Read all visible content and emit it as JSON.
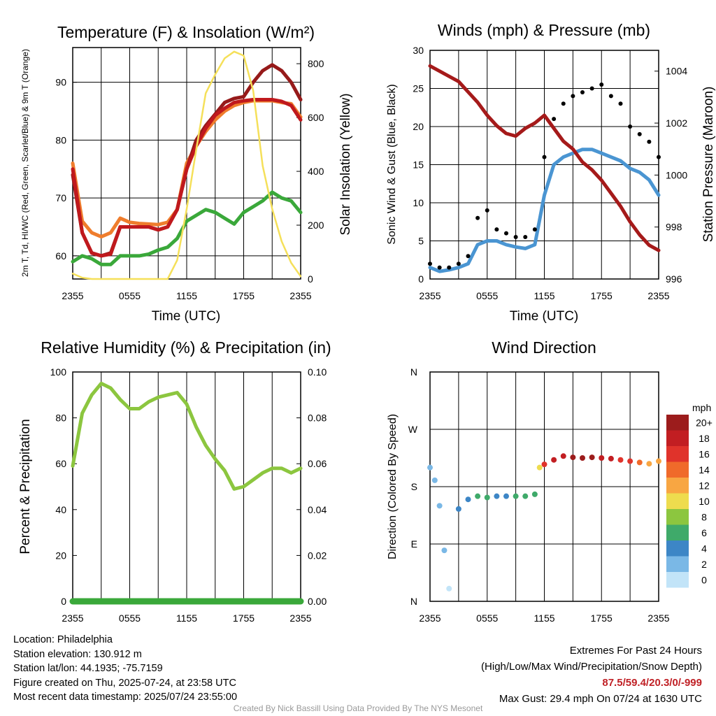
{
  "colors": {
    "red": "#c0191d",
    "green": "#3aa83a",
    "orange": "#ef7d2d",
    "darkred": "#961a1a",
    "yellow": "#f5e05a",
    "wind_blue": "#4a95d2",
    "gust_black": "#000000",
    "pressure": "#a51a1a",
    "rh": "#8cc63f",
    "precip": "#3aa83a"
  },
  "x_ticks": [
    "2355",
    "0555",
    "1155",
    "1755",
    "2355"
  ],
  "footer": {
    "location": "Location: Philadelphia",
    "elevation": "Station elevation: 130.912 m",
    "latlon": "Station lat/lon: 44.1935; -75.7159",
    "created": "Figure created on Thu, 2025-07-24, at 23:58 UTC",
    "recent": "Most recent data timestamp: 2025/07/24 23:55:00",
    "extremes_title": "Extremes For Past 24 Hours",
    "extremes_keys": "(High/Low/Max Wind/Precipitation/Snow Depth)",
    "extremes_values": "87.5/59.4/20.3/0/-999",
    "max_gust": "Max Gust: 29.4 mph On 07/24 at 1630 UTC",
    "credit": "Created By Nick Bassill Using Data Provided By The NYS Mesonet"
  },
  "chart_data": [
    {
      "type": "line",
      "title": "Temperature (F) & Insolation (W/m²)",
      "xlabel": "Time (UTC)",
      "ylabel": "2m T, Td, HI/WC (Red, Green, Scarlet/Blue) & 9m T (Orange)",
      "ylabel2": "Solar Insolation (Yellow)",
      "ylim": [
        56,
        96
      ],
      "y2lim": [
        0,
        860
      ],
      "yticks": [
        60,
        70,
        80,
        90
      ],
      "y2ticks": [
        0,
        200,
        400,
        600,
        800
      ],
      "x_hours": [
        0,
        1,
        2,
        3,
        4,
        5,
        6,
        7,
        8,
        9,
        10,
        11,
        12,
        13,
        14,
        15,
        16,
        17,
        18,
        19,
        20,
        21,
        22,
        23,
        24
      ],
      "series": [
        {
          "name": "9m T",
          "color": "orange",
          "axis": "left",
          "values": [
            76,
            66,
            64,
            63.3,
            64,
            66.5,
            65.8,
            65.6,
            65.5,
            65.4,
            65.8,
            68,
            76,
            79,
            81.5,
            83.5,
            85,
            86,
            86.5,
            86.8,
            86.8,
            86.8,
            86.5,
            86.3,
            84
          ]
        },
        {
          "name": "HI/WC",
          "color": "darkred",
          "axis": "left",
          "values": [
            74,
            64,
            60.5,
            60,
            60.5,
            65,
            65,
            65,
            65,
            64.5,
            65,
            68,
            75,
            80,
            82.5,
            84.5,
            86.5,
            87.2,
            87.5,
            90,
            92,
            93,
            92,
            90,
            87
          ]
        },
        {
          "name": "2m T",
          "color": "red",
          "axis": "left",
          "values": [
            75,
            64,
            60.5,
            60,
            60.3,
            65,
            65,
            65,
            65,
            64.5,
            65,
            68,
            75,
            79,
            82,
            84.3,
            85.5,
            86.5,
            86.8,
            87,
            87,
            87,
            86.7,
            86,
            83.5
          ]
        },
        {
          "name": "2m Td",
          "color": "green",
          "axis": "left",
          "values": [
            59,
            60,
            59.5,
            58.5,
            58.5,
            60,
            60,
            60,
            60.3,
            61,
            61.5,
            63,
            66,
            67,
            68,
            67.5,
            66.5,
            65.5,
            67.5,
            68.5,
            69.5,
            71,
            70,
            69.5,
            67.5
          ]
        },
        {
          "name": "Insolation",
          "color": "yellow",
          "axis": "right",
          "values": [
            20,
            5,
            0,
            0,
            0,
            0,
            0,
            0,
            0,
            0,
            0,
            70,
            260,
            480,
            690,
            760,
            820,
            845,
            830,
            700,
            420,
            260,
            140,
            60,
            10
          ]
        }
      ]
    },
    {
      "type": "line",
      "title": "Winds (mph) & Pressure (mb)",
      "xlabel": "Time (UTC)",
      "ylabel": "Sonic Wind & Gust (Blue, Black)",
      "ylabel2": "Station Pressure (Maroon)",
      "ylim": [
        0,
        30
      ],
      "y2lim": [
        996,
        1004.8
      ],
      "yticks": [
        0,
        5,
        10,
        15,
        20,
        25,
        30
      ],
      "y2ticks": [
        996,
        998,
        1000,
        1002,
        1004
      ],
      "x_hours": [
        0,
        1,
        2,
        3,
        4,
        5,
        6,
        7,
        8,
        9,
        10,
        11,
        12,
        13,
        14,
        15,
        16,
        17,
        18,
        19,
        20,
        21,
        22,
        23,
        24
      ],
      "series": [
        {
          "name": "Sonic Wind",
          "color": "wind_blue",
          "axis": "left",
          "values": [
            1.5,
            1,
            1.2,
            1.5,
            2,
            4.5,
            5,
            5,
            4.5,
            4.2,
            4,
            4.5,
            11,
            15,
            16,
            16.5,
            17,
            17,
            16.5,
            16,
            15.5,
            14.5,
            14,
            13,
            11
          ]
        },
        {
          "name": "Gust",
          "color": "gust_black",
          "axis": "left",
          "style": "dots",
          "values": [
            2,
            1.5,
            1.5,
            2,
            3,
            8,
            9,
            6.5,
            6,
            5.5,
            5.5,
            6.5,
            16,
            21,
            23,
            24,
            24.5,
            25,
            25.5,
            24,
            23,
            20,
            19,
            18,
            16
          ]
        },
        {
          "name": "Station Pressure",
          "color": "pressure",
          "axis": "right",
          "values": [
            1004.2,
            1004,
            1003.8,
            1003.6,
            1003.2,
            1002.8,
            1002.3,
            1001.9,
            1001.6,
            1001.5,
            1001.8,
            1002.0,
            1002.3,
            1001.8,
            1001.3,
            1001.0,
            1000.5,
            1000.2,
            999.8,
            999.3,
            998.8,
            998.2,
            997.7,
            997.3,
            997.1
          ]
        }
      ]
    },
    {
      "type": "line",
      "title": "Relative Humidity (%) & Precipitation (in)",
      "ylabel": "Percent & Precipitation",
      "ylim": [
        0,
        100
      ],
      "y2lim": [
        0,
        0.1
      ],
      "yticks": [
        0,
        20,
        40,
        60,
        80,
        100
      ],
      "y2ticks": [
        "0.00",
        "0.02",
        "0.04",
        "0.06",
        "0.08",
        "0.10"
      ],
      "x_hours": [
        0,
        1,
        2,
        3,
        4,
        5,
        6,
        7,
        8,
        9,
        10,
        11,
        12,
        13,
        14,
        15,
        16,
        17,
        18,
        19,
        20,
        21,
        22,
        23,
        24
      ],
      "series": [
        {
          "name": "Relative Humidity",
          "color": "rh",
          "axis": "left",
          "values": [
            59,
            82,
            90,
            95,
            93,
            88,
            84,
            84,
            87,
            89,
            90,
            91,
            86,
            76,
            68,
            62,
            57,
            49,
            50,
            53,
            56,
            58,
            58,
            56,
            58
          ]
        },
        {
          "name": "Precipitation",
          "color": "precip",
          "axis": "right",
          "values": [
            0,
            0,
            0,
            0,
            0,
            0,
            0,
            0,
            0,
            0,
            0,
            0,
            0,
            0,
            0,
            0,
            0,
            0,
            0,
            0,
            0,
            0,
            0,
            0,
            0
          ]
        }
      ]
    },
    {
      "type": "scatter",
      "title": "Wind Direction",
      "ylabel": "Direction (Colored By Speed)",
      "yticks": [
        "N",
        "E",
        "S",
        "W",
        "N"
      ],
      "ylim_deg": [
        0,
        360
      ],
      "colorbar_unit": "mph",
      "colorbar_labels": [
        "20+",
        "18",
        "16",
        "14",
        "12",
        "10",
        "8",
        "6",
        "4",
        "2",
        "0"
      ],
      "colorbar_colors": [
        "#9c1c1c",
        "#c21e22",
        "#e0332b",
        "#f06a2a",
        "#f8a642",
        "#eedc4e",
        "#8cc63f",
        "#3faa6a",
        "#3d86c6",
        "#7ab8e6",
        "#c2e4f8"
      ],
      "x_hours": [
        0,
        0.5,
        1,
        1.5,
        2,
        3,
        4,
        5,
        6,
        7,
        8,
        9,
        10,
        11,
        11.5,
        12,
        13,
        14,
        15,
        16,
        17,
        18,
        19,
        20,
        21,
        22,
        23,
        24
      ],
      "direction_deg": [
        210,
        190,
        150,
        80,
        20,
        145,
        160,
        165,
        163,
        165,
        165,
        165,
        165,
        168,
        210,
        215,
        222,
        228,
        226,
        225,
        226,
        225,
        224,
        222,
        220,
        218,
        216,
        220
      ],
      "speed_mph": [
        2,
        1,
        1,
        1,
        0,
        3,
        4,
        5,
        5,
        4,
        4,
        5,
        5,
        6,
        10,
        15,
        17,
        18,
        19,
        20,
        19,
        18,
        17,
        16,
        15,
        13,
        12,
        11
      ]
    }
  ]
}
